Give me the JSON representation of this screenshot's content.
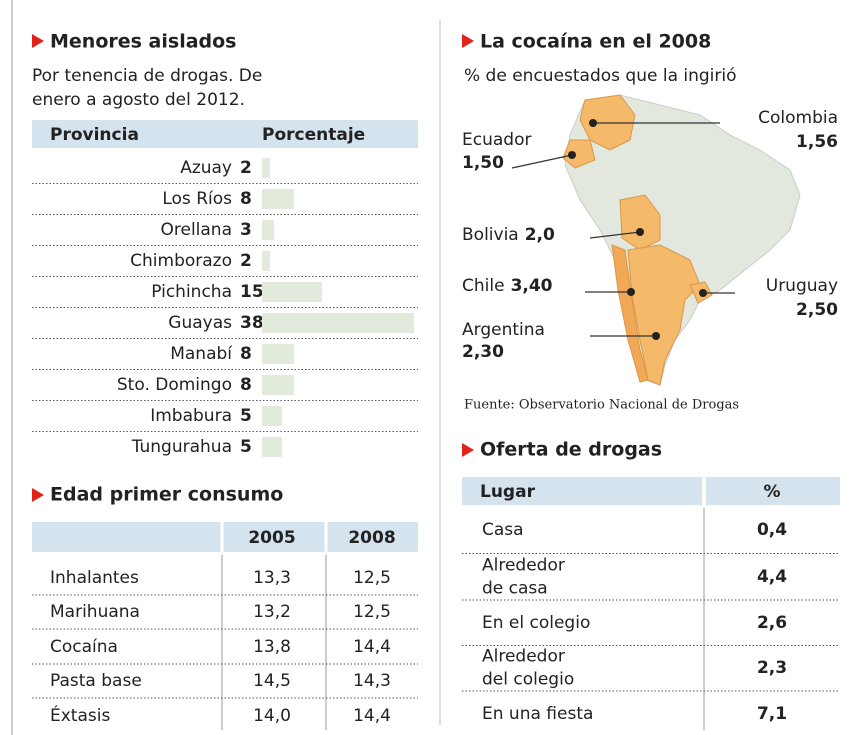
{
  "chart_data": {
    "type": "bar",
    "title": "Menores aislados",
    "subtitle": [
      "Por tenencia de drogas. De",
      "enero a agosto del 2012."
    ],
    "headers": [
      "Provincia",
      "Porcentaje"
    ],
    "categories": [
      "Azuay",
      "Los Ríos",
      "Orellana",
      "Chimborazo",
      "Pichincha",
      "Guayas",
      "Manabí",
      "Sto. Domingo",
      "Imbabura",
      "Tungurahua"
    ],
    "values": [
      2,
      8,
      3,
      2,
      15,
      38,
      8,
      8,
      5,
      5
    ],
    "color": "#e2eadb"
  },
  "edad": {
    "title": "Edad primer consumo",
    "headers": [
      "2005",
      "2008"
    ],
    "rows": [
      [
        "Inhalantes",
        "13,3",
        "12,5"
      ],
      [
        "Marihuana",
        "13,2",
        "12,5"
      ],
      [
        "Cocaína",
        "13,8",
        "14,4"
      ],
      [
        "Pasta base",
        "14,5",
        "14,3"
      ],
      [
        "Éxtasis",
        "14,0",
        "14,4"
      ]
    ]
  },
  "mapa": {
    "title": "La cocaína en el 2008",
    "subtitle": "% de encuestados que la ingirió",
    "labels": [
      {
        "name": "Colombia",
        "value": "1,56"
      },
      {
        "name": "Ecuador",
        "value": "1,50"
      },
      {
        "name": "Bolivia",
        "value": "2,0"
      },
      {
        "name": "Chile",
        "value": "3,40"
      },
      {
        "name": "Uruguay",
        "value": "2,50"
      },
      {
        "name": "Argentina",
        "value": "2,30"
      }
    ],
    "source": "Fuente: Observatorio Nacional de Drogas"
  },
  "oferta": {
    "title": "Oferta de drogas",
    "headers": [
      "Lugar",
      "%"
    ],
    "rows": [
      [
        [
          "Casa"
        ],
        "0,4"
      ],
      [
        [
          "Alrededor",
          "de casa"
        ],
        "4,4"
      ],
      [
        [
          "En el colegio"
        ],
        "2,6"
      ],
      [
        [
          "Alrededor",
          "del colegio"
        ],
        "2,3"
      ],
      [
        [
          "En una fiesta"
        ],
        "7,1"
      ]
    ]
  }
}
